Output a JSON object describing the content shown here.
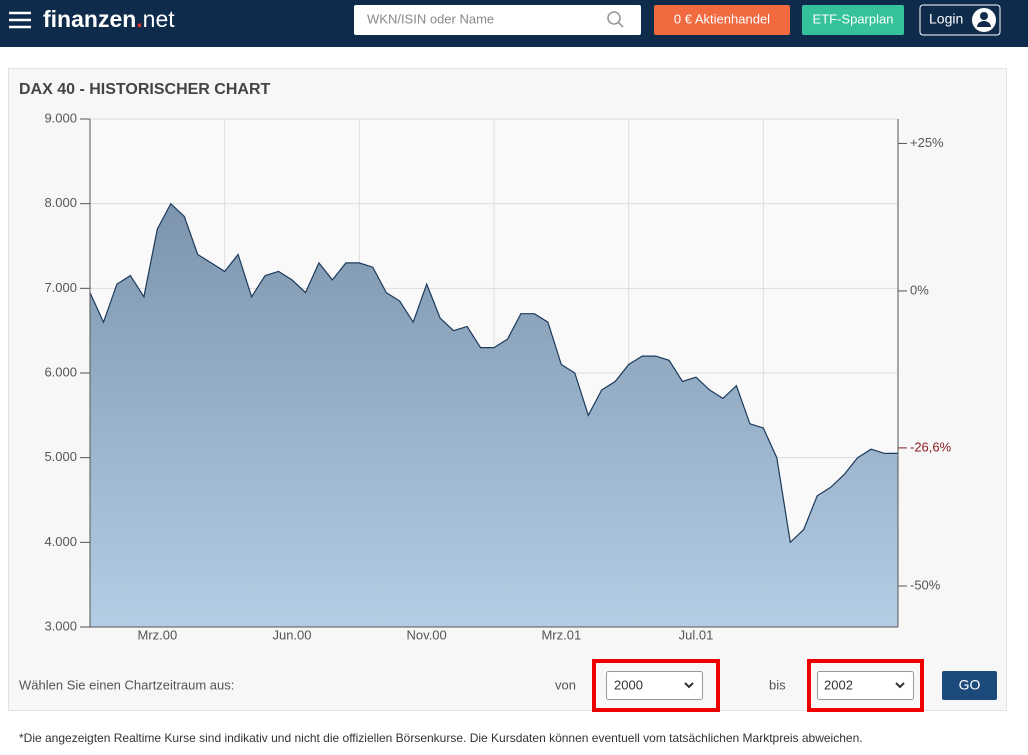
{
  "header": {
    "logo_main": "finanzen",
    "logo_dot": ".",
    "logo_tld": "net",
    "search_placeholder": "WKN/ISIN oder Name",
    "trade_button": "0 € Aktienhandel",
    "etf_button": "ETF-Sparplan",
    "login_button": "Login"
  },
  "chart_data": {
    "type": "area",
    "title": "DAX 40 - HISTORISCHER CHART",
    "categories": [
      null,
      null,
      null,
      null,
      null,
      "Mrz.00",
      null,
      null,
      null,
      null,
      null,
      null,
      null,
      null,
      null,
      "Jun.00",
      null,
      null,
      null,
      null,
      null,
      null,
      null,
      null,
      null,
      "Nov.00",
      null,
      null,
      null,
      null,
      null,
      null,
      null,
      null,
      null,
      "Mrz.01",
      null,
      null,
      null,
      null,
      null,
      null,
      null,
      null,
      null,
      "Jul.01",
      null,
      null,
      null,
      null,
      null,
      null,
      null,
      null,
      null,
      null,
      null,
      null,
      null,
      null,
      null
    ],
    "series": [
      {
        "name": "DAX 40",
        "color": "#1c3a5c",
        "values": [
          6950,
          6600,
          7050,
          7150,
          6900,
          7700,
          8000,
          7850,
          7400,
          7300,
          7200,
          7400,
          6900,
          7150,
          7200,
          7100,
          6950,
          7300,
          7100,
          7300,
          7300,
          7250,
          6950,
          6850,
          6600,
          7050,
          6650,
          6500,
          6550,
          6300,
          6300,
          6400,
          6700,
          6700,
          6600,
          6100,
          6000,
          5500,
          5800,
          5900,
          6100,
          6200,
          6200,
          6150,
          5900,
          5950,
          5800,
          5700,
          5850,
          5400,
          5350,
          5000,
          4000,
          4150,
          4550,
          4650,
          4800,
          5000,
          5100,
          5050,
          5050
        ]
      }
    ],
    "ylim": [
      3000,
      9000
    ],
    "yticks": [
      {
        "value": 3000,
        "label": "3.000"
      },
      {
        "value": 4000,
        "label": "4.000"
      },
      {
        "value": 5000,
        "label": "5.000"
      },
      {
        "value": 6000,
        "label": "6.000"
      },
      {
        "value": 7000,
        "label": "7.000"
      },
      {
        "value": 8000,
        "label": "8.000"
      },
      {
        "value": 9000,
        "label": "9.000"
      }
    ],
    "y2lim": [
      -56.95,
      29.14
    ],
    "y2ticks": [
      {
        "value": 25,
        "label": "+25%"
      },
      {
        "value": 0,
        "label": "0%"
      },
      {
        "value": -50,
        "label": "-50%"
      }
    ],
    "y2_annotation": {
      "value": -26.6,
      "label": "-26,6%",
      "color": "#8b1a1a"
    },
    "grid": true
  },
  "form": {
    "prompt": "Wählen Sie einen Chartzeitraum aus:",
    "from_label": "von",
    "from_value": "2000",
    "to_label": "bis",
    "to_value": "2002",
    "go_button": "GO"
  },
  "footnote": "*Die angezeigten Realtime Kurse sind indikativ und nicht die offiziellen Börsenkurse. Die Kursdaten können eventuell vom tatsächlichen Marktpreis abweichen."
}
